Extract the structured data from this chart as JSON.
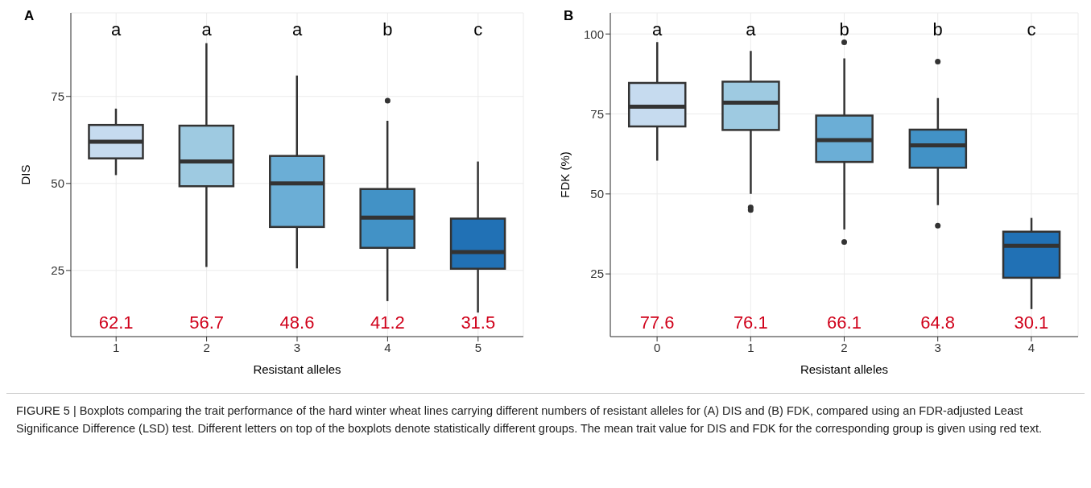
{
  "chart_data": [
    {
      "type": "box",
      "title": "A",
      "xlabel": "Resistant alleles",
      "ylabel": "DIS",
      "categories": [
        "1",
        "2",
        "3",
        "4",
        "5"
      ],
      "colors": [
        "#c6dbef",
        "#9ecae1",
        "#6baed6",
        "#4292c6",
        "#2171b5"
      ],
      "ylim": [
        6,
        99
      ],
      "yticks": [
        25,
        50,
        75
      ],
      "grid": true,
      "boxes": [
        {
          "low": 52.4,
          "q1": 57.2,
          "median": 62.0,
          "q3": 66.8,
          "high": 71.5
        },
        {
          "low": 26.0,
          "q1": 49.2,
          "median": 56.3,
          "q3": 66.6,
          "high": 90.3
        },
        {
          "low": 25.6,
          "q1": 37.5,
          "median": 50.0,
          "q3": 57.9,
          "high": 81.0
        },
        {
          "low": 16.2,
          "q1": 31.5,
          "median": 40.2,
          "q3": 48.4,
          "high": 68.0,
          "outliers": [
            73.8
          ]
        },
        {
          "low": 12.9,
          "q1": 25.5,
          "median": 30.3,
          "q3": 39.9,
          "high": 56.3
        }
      ],
      "annotations": [
        "a",
        "a",
        "a",
        "b",
        "c",
        "62.1",
        "56.7",
        "48.6",
        "41.2",
        "31.5",
        "FIGURE 5 | Boxplots comparing the trait performance of the hard winter wheat lines carrying different numbers of resistant alleles for (A) DIS and (B) FDK, compared using an FDR-adjusted Least Significance Difference (LSD) test. Different letters on top of the boxplots denote statistically different groups. The mean trait value for DIS and FDK for the corresponding group is given using red text."
      ]
    },
    {
      "type": "box",
      "title": "B",
      "xlabel": "Resistant alleles",
      "ylabel": "FDK (%)",
      "categories": [
        "0",
        "1",
        "2",
        "3",
        "4"
      ],
      "colors": [
        "#c6dbef",
        "#9ecae1",
        "#6baed6",
        "#4292c6",
        "#2171b5"
      ],
      "ylim": [
        5.4,
        106.6
      ],
      "yticks": [
        25,
        50,
        75,
        100
      ],
      "grid": true,
      "boxes": [
        {
          "low": 60.4,
          "q1": 71.1,
          "median": 77.3,
          "q3": 84.7,
          "high": 97.5
        },
        {
          "low": 50.0,
          "q1": 70.0,
          "median": 78.5,
          "q3": 85.1,
          "high": 94.7,
          "outliers": [
            45.8,
            45.0
          ]
        },
        {
          "low": 38.9,
          "q1": 60.0,
          "median": 66.8,
          "q3": 74.5,
          "high": 92.4,
          "outliers": [
            97.4,
            35.0
          ]
        },
        {
          "low": 46.5,
          "q1": 58.2,
          "median": 65.2,
          "q3": 70.1,
          "high": 80.0,
          "outliers": [
            91.4,
            40.1
          ]
        },
        {
          "low": 14.0,
          "q1": 23.8,
          "median": 33.8,
          "q3": 38.2,
          "high": 42.5
        }
      ],
      "annotations": [
        "a",
        "a",
        "b",
        "b",
        "c",
        "77.6",
        "76.1",
        "66.1",
        "64.8",
        "30.1"
      ]
    }
  ]
}
